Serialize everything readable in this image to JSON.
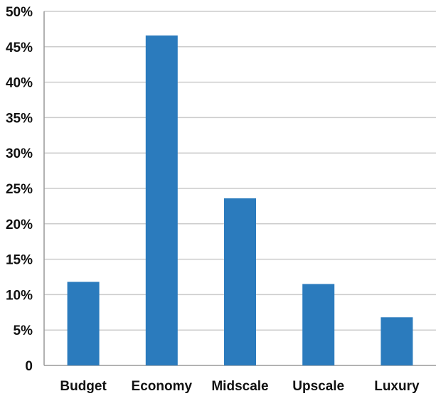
{
  "chart_data": {
    "type": "bar",
    "title": "",
    "xlabel": "",
    "ylabel": "",
    "categories": [
      "Budget",
      "Economy",
      "Midscale",
      "Upscale",
      "Luxury"
    ],
    "values": [
      11.8,
      46.6,
      23.6,
      11.5,
      6.8
    ],
    "ylim": [
      0,
      50
    ],
    "yticks": [
      0,
      5,
      10,
      15,
      20,
      25,
      30,
      35,
      40,
      45,
      50
    ],
    "ytick_labels": [
      "0",
      "5%",
      "10%",
      "15%",
      "20%",
      "25%",
      "30%",
      "35%",
      "40%",
      "45%",
      "50%"
    ],
    "grid": true,
    "legend": "none",
    "colors": {
      "bar": "#2b7bbd",
      "grid": "#cccccc",
      "axis": "#999999",
      "text": "#111111"
    }
  }
}
